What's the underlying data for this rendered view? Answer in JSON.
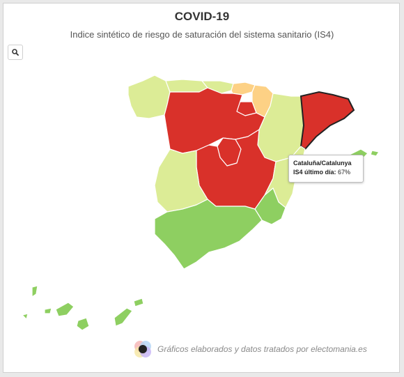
{
  "header": {
    "title": "COVID-19",
    "subtitle": "Indice sintético de riesgo de saturación del sistema sanitario (IS4)"
  },
  "toolbar": {
    "zoom_icon": "search-icon"
  },
  "legend_colors": {
    "red": "#d9312a",
    "orange": "#fdd185",
    "light_green": "#dcec96",
    "green": "#8ecf61",
    "border_highlight": "#222222"
  },
  "regions": [
    {
      "name": "Galicia",
      "level": "light_green"
    },
    {
      "name": "Asturias",
      "level": "light_green"
    },
    {
      "name": "Cantabria",
      "level": "light_green"
    },
    {
      "name": "País Vasco",
      "level": "orange"
    },
    {
      "name": "Navarra",
      "level": "orange"
    },
    {
      "name": "La Rioja",
      "level": "red"
    },
    {
      "name": "Aragón",
      "level": "light_green"
    },
    {
      "name": "Cataluña/Catalunya",
      "level": "red",
      "is4": "67%"
    },
    {
      "name": "Castilla y León",
      "level": "red"
    },
    {
      "name": "Madrid",
      "level": "red"
    },
    {
      "name": "Castilla-La Mancha",
      "level": "red"
    },
    {
      "name": "Comunidad Valenciana",
      "level": "light_green"
    },
    {
      "name": "Extremadura",
      "level": "light_green"
    },
    {
      "name": "Murcia",
      "level": "green"
    },
    {
      "name": "Andalucía",
      "level": "green"
    },
    {
      "name": "Baleares",
      "level": "green"
    },
    {
      "name": "Canarias",
      "level": "green"
    }
  ],
  "tooltip": {
    "region": "Cataluña/Catalunya",
    "metric_label": "IS4 último día:",
    "value": "67%"
  },
  "footer": {
    "credit": "Gráficos elaborados y datos tratados por electomania.es"
  }
}
